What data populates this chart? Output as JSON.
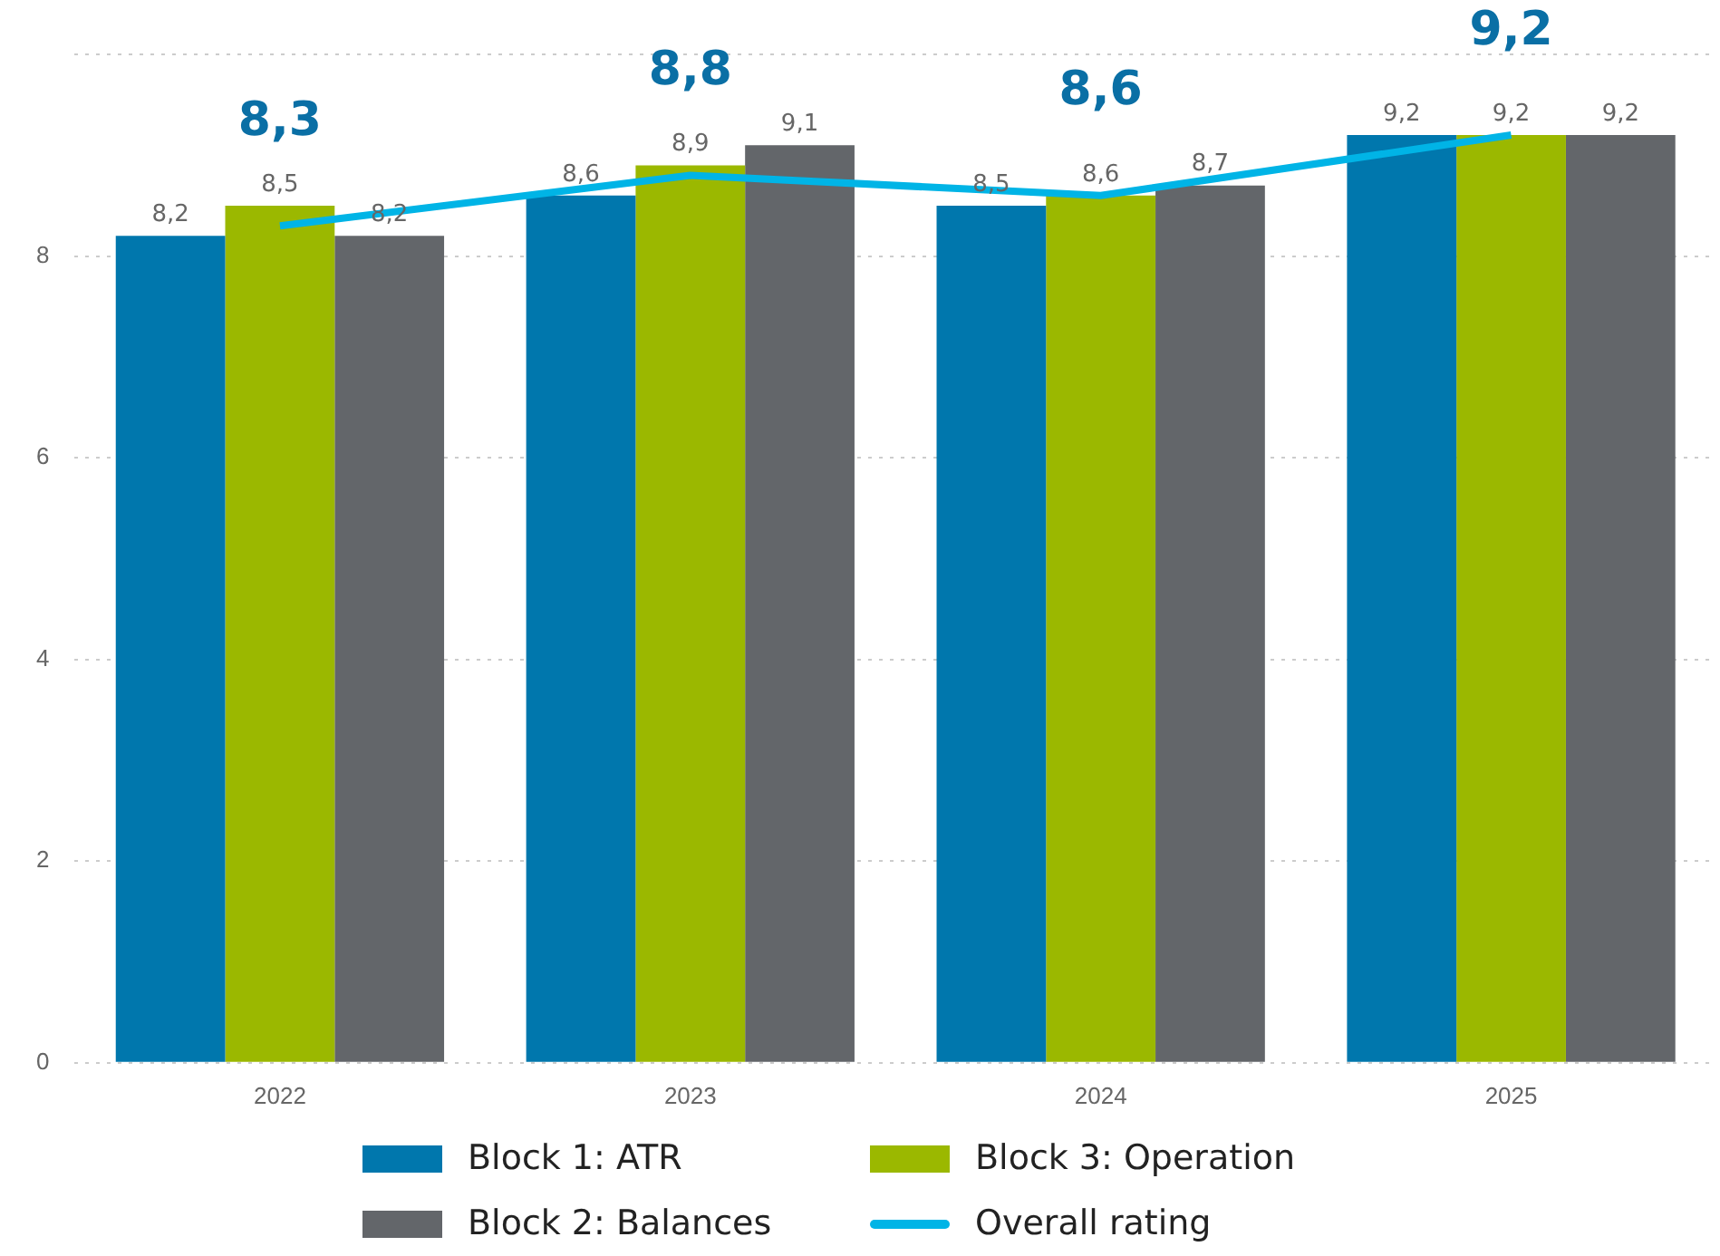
{
  "chart_data": {
    "type": "bar",
    "categories": [
      "2022",
      "2023",
      "2024",
      "2025"
    ],
    "series": [
      {
        "name": "Block 1: ATR",
        "color": "#0077ad",
        "values": [
          8.2,
          8.6,
          8.5,
          9.2
        ],
        "value_labels": [
          "8,2",
          "8,6",
          "8,5",
          "9,2"
        ]
      },
      {
        "name": "Block 3: Operation",
        "color": "#9bb800",
        "values": [
          8.5,
          8.9,
          8.6,
          9.2
        ],
        "value_labels": [
          "8,5",
          "8,9",
          "8,6",
          "9,2"
        ]
      },
      {
        "name": "Block 2: Balances",
        "color": "#63666a",
        "values": [
          8.2,
          9.1,
          8.7,
          9.2
        ],
        "value_labels": [
          "8,2",
          "9,1",
          "8,7",
          "9,2"
        ]
      },
      {
        "name": "Overall rating",
        "type": "line",
        "color": "#00b4e6",
        "values": [
          8.3,
          8.8,
          8.6,
          9.2
        ],
        "value_labels": [
          "8,3",
          "8,8",
          "8,6",
          "9,2"
        ]
      }
    ],
    "ylim": [
      0,
      10
    ],
    "yticks": [
      0,
      2,
      4,
      6,
      8,
      {
        "value": 10,
        "label": null
      }
    ],
    "grid": "y",
    "legend": "bottom",
    "marker": "none"
  }
}
